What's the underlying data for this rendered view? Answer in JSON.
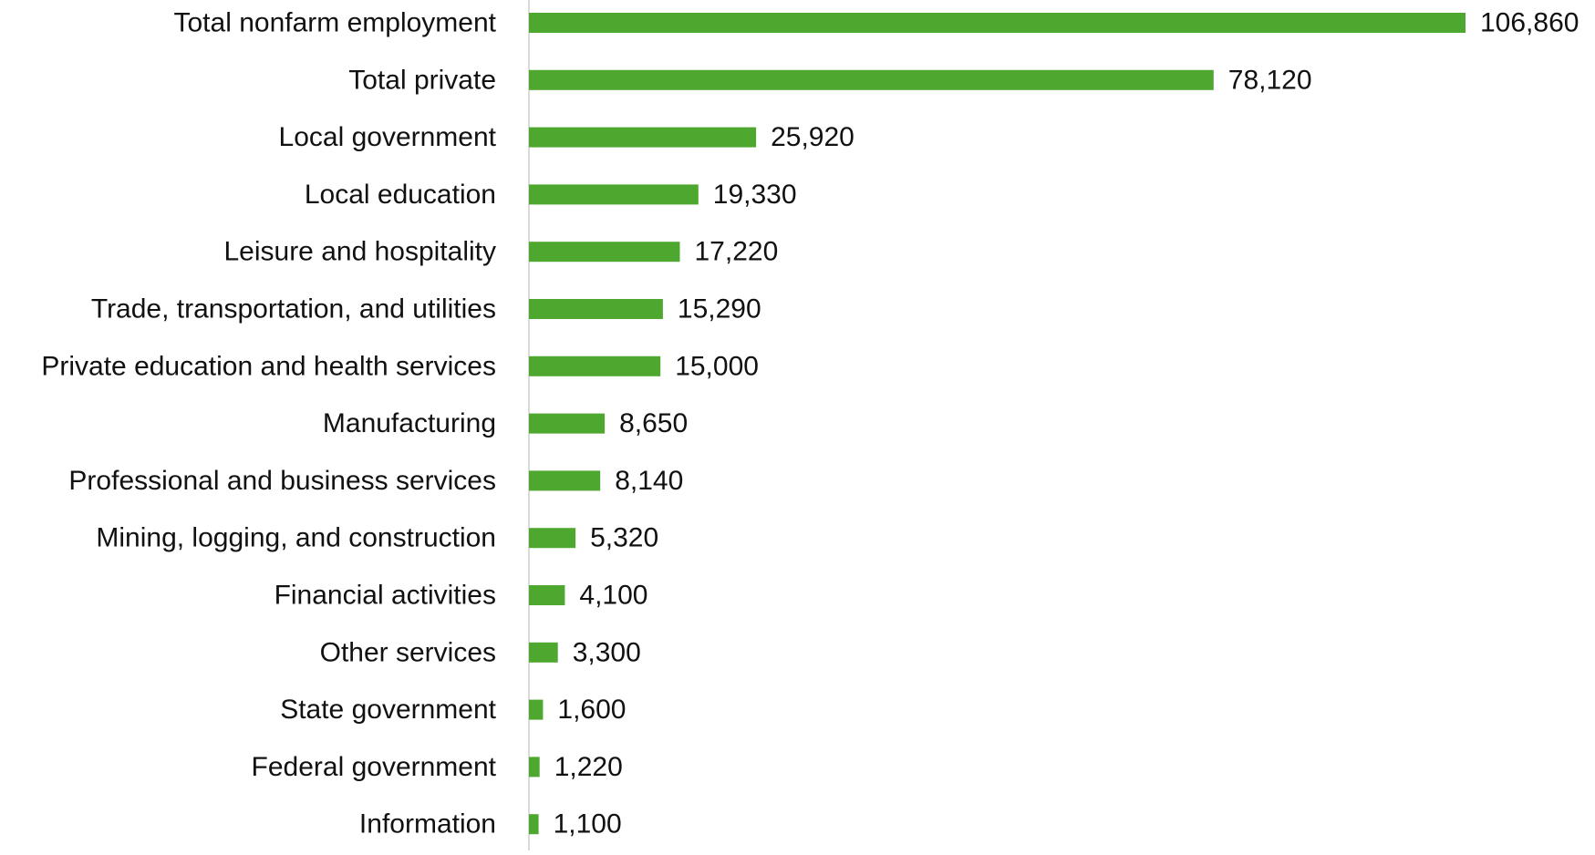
{
  "chart_data": {
    "type": "bar",
    "orientation": "horizontal",
    "title": "",
    "xlabel": "",
    "ylabel": "",
    "categories": [
      "Total nonfarm employment",
      "Total private",
      "Local government",
      "Local education",
      "Leisure and hospitality",
      "Trade, transportation, and utilities",
      "Private education and health services",
      "Manufacturing",
      "Professional and business services",
      "Mining, logging, and construction",
      "Financial activities",
      "Other services",
      "State government",
      "Federal government",
      "Information"
    ],
    "values": [
      106860,
      78120,
      25920,
      19330,
      17220,
      15290,
      15000,
      8650,
      8140,
      5320,
      4100,
      3300,
      1600,
      1220,
      1100
    ],
    "data_labels": [
      "106,860",
      "78,120",
      "25,920",
      "19,330",
      "17,220",
      "15,290",
      "15,000",
      "8,650",
      "8,140",
      "5,320",
      "4,100",
      "3,300",
      "1,600",
      "1,220",
      "1,100"
    ],
    "xlim": [
      0,
      106860
    ],
    "grid": false,
    "legend": "none",
    "colors": {
      "bar": "#4ea72e",
      "axis": "#d9d9d9",
      "text": "#111111"
    }
  }
}
